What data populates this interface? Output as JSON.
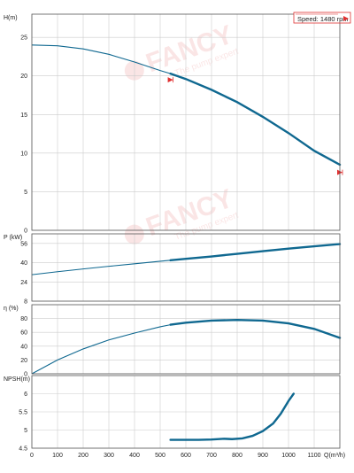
{
  "watermark": {
    "brand": "FANCY",
    "tagline": "The pump expert"
  },
  "chart_data": {
    "type": "line",
    "speed_label": "Speed: 1480 rpm",
    "colors": {
      "curve": "#0f6890",
      "grid": "#cccccc",
      "marker": "#e03030",
      "border": "#555555"
    },
    "x": {
      "label": "Q(m³/h)",
      "min": 0,
      "max": 1200,
      "ticks": [
        0,
        100,
        200,
        300,
        400,
        500,
        600,
        700,
        800,
        900,
        1000,
        1100
      ]
    },
    "duty_range": {
      "q_min": 540,
      "q_max": 1200
    },
    "panels": [
      {
        "id": "head",
        "label": "H(m)",
        "ylim": [
          0,
          28
        ],
        "ticks": [
          0,
          5,
          10,
          15,
          20,
          25
        ],
        "points": [
          [
            0,
            24
          ],
          [
            100,
            23.9
          ],
          [
            200,
            23.5
          ],
          [
            300,
            22.8
          ],
          [
            400,
            21.8
          ],
          [
            500,
            20.7
          ],
          [
            540,
            20.3
          ],
          [
            600,
            19.6
          ],
          [
            700,
            18.2
          ],
          [
            800,
            16.6
          ],
          [
            900,
            14.7
          ],
          [
            1000,
            12.6
          ],
          [
            1100,
            10.3
          ],
          [
            1200,
            8.5
          ]
        ],
        "markers": [
          {
            "q": 540,
            "y": 19.5,
            "dir": "right"
          },
          {
            "q": 1200,
            "y": 7.5,
            "dir": "right"
          }
        ]
      },
      {
        "id": "power",
        "label": "P (kW)",
        "ylim": [
          8,
          64
        ],
        "ticks": [
          8,
          24,
          40,
          56
        ],
        "points": [
          [
            0,
            30
          ],
          [
            100,
            32.5
          ],
          [
            200,
            34.8
          ],
          [
            300,
            37
          ],
          [
            400,
            39.1
          ],
          [
            500,
            41.2
          ],
          [
            540,
            42
          ],
          [
            600,
            43.2
          ],
          [
            700,
            45.2
          ],
          [
            800,
            47.4
          ],
          [
            900,
            49.6
          ],
          [
            1000,
            51.7
          ],
          [
            1100,
            53.6
          ],
          [
            1200,
            55.5
          ]
        ],
        "markers": []
      },
      {
        "id": "efficiency",
        "label": "η (%)",
        "ylim": [
          0,
          100
        ],
        "ticks": [
          0,
          20,
          40,
          60,
          80
        ],
        "points": [
          [
            0,
            0
          ],
          [
            100,
            20
          ],
          [
            200,
            36
          ],
          [
            300,
            49
          ],
          [
            400,
            59
          ],
          [
            500,
            68
          ],
          [
            540,
            71
          ],
          [
            600,
            74
          ],
          [
            700,
            77
          ],
          [
            800,
            78
          ],
          [
            900,
            77
          ],
          [
            1000,
            73
          ],
          [
            1100,
            65
          ],
          [
            1200,
            52
          ]
        ],
        "markers": []
      },
      {
        "id": "npsh",
        "label": "NPSH(m)",
        "ylim": [
          4.5,
          6.5
        ],
        "ticks": [
          4.5,
          5,
          5.5,
          6
        ],
        "points": [
          [
            540,
            4.73
          ],
          [
            600,
            4.73
          ],
          [
            650,
            4.73
          ],
          [
            700,
            4.74
          ],
          [
            750,
            4.76
          ],
          [
            780,
            4.75
          ],
          [
            820,
            4.77
          ],
          [
            860,
            4.84
          ],
          [
            900,
            4.97
          ],
          [
            940,
            5.18
          ],
          [
            970,
            5.45
          ],
          [
            1000,
            5.8
          ],
          [
            1020,
            6.0
          ]
        ],
        "markers": []
      }
    ]
  }
}
